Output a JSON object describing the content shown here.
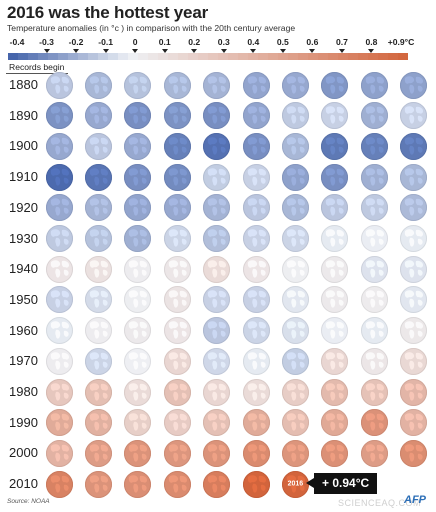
{
  "chart_data": {
    "type": "heatmap",
    "title": "2016 was the hottest year",
    "subtitle": "Temperature anomalies (in °c ) in comparison with the 20th century average",
    "scale_ticks": [
      "-0.4",
      "-0.3",
      "-0.2",
      "-0.1",
      "0",
      "0.1",
      "0.2",
      "0.3",
      "0.4",
      "0.5",
      "0.6",
      "0.7",
      "0.8",
      "+0.9°C"
    ],
    "scale_range": [
      -0.4,
      0.9
    ],
    "records_begin_label": "Records begin",
    "decades": [
      "1880",
      "1890",
      "1900",
      "1910",
      "1920",
      "1930",
      "1940",
      "1950",
      "1960",
      "1970",
      "1980",
      "1990",
      "2000",
      "2010"
    ],
    "anomalies": [
      [
        -0.12,
        -0.16,
        -0.13,
        -0.16,
        -0.17,
        -0.21,
        -0.2,
        -0.25,
        -0.22,
        -0.22
      ],
      [
        -0.26,
        -0.2,
        -0.27,
        -0.26,
        -0.27,
        -0.21,
        -0.11,
        -0.09,
        -0.18,
        -0.09
      ],
      [
        -0.2,
        -0.12,
        -0.2,
        -0.31,
        -0.35,
        -0.27,
        -0.16,
        -0.33,
        -0.31,
        -0.33
      ],
      [
        -0.37,
        -0.34,
        -0.27,
        -0.28,
        -0.1,
        -0.09,
        -0.22,
        -0.27,
        -0.18,
        -0.16
      ],
      [
        -0.2,
        -0.17,
        -0.21,
        -0.2,
        -0.17,
        -0.12,
        -0.16,
        -0.12,
        -0.11,
        -0.15
      ],
      [
        -0.11,
        -0.13,
        -0.18,
        -0.08,
        -0.14,
        -0.09,
        -0.08,
        -0.02,
        -0.01,
        -0.02
      ],
      [
        0.08,
        0.1,
        0.03,
        0.07,
        0.14,
        0.08,
        0.02,
        0.05,
        -0.04,
        -0.04
      ],
      [
        -0.09,
        -0.06,
        0.02,
        0.09,
        -0.09,
        -0.09,
        -0.03,
        0.05,
        0.04,
        -0.03
      ],
      [
        -0.02,
        0.03,
        0.05,
        0.08,
        -0.12,
        -0.08,
        -0.05,
        -0.01,
        -0.02,
        0.06
      ],
      [
        0.03,
        -0.08,
        0.01,
        0.17,
        -0.07,
        -0.02,
        -0.1,
        0.17,
        0.07,
        0.16
      ],
      [
        0.27,
        0.32,
        0.14,
        0.31,
        0.17,
        0.14,
        0.23,
        0.35,
        0.3,
        0.38
      ],
      [
        0.45,
        0.41,
        0.22,
        0.24,
        0.31,
        0.45,
        0.33,
        0.46,
        0.61,
        0.4
      ],
      [
        0.4,
        0.54,
        0.6,
        0.58,
        0.6,
        0.65,
        0.59,
        0.62,
        0.54,
        0.64
      ],
      [
        0.71,
        0.6,
        0.63,
        0.65,
        0.74,
        0.9,
        0.94,
        null,
        null,
        null
      ]
    ],
    "highlight": {
      "year": "2016",
      "value_label": "+ 0.94°C"
    },
    "colors": {
      "cold_extreme": "#3f5fa8",
      "neutral": "#eef1f5",
      "warm_extreme": "#d2643c"
    }
  },
  "source": "Source: NOAA",
  "watermark": "SCIENCEAQ.COM",
  "logo": "AFP"
}
